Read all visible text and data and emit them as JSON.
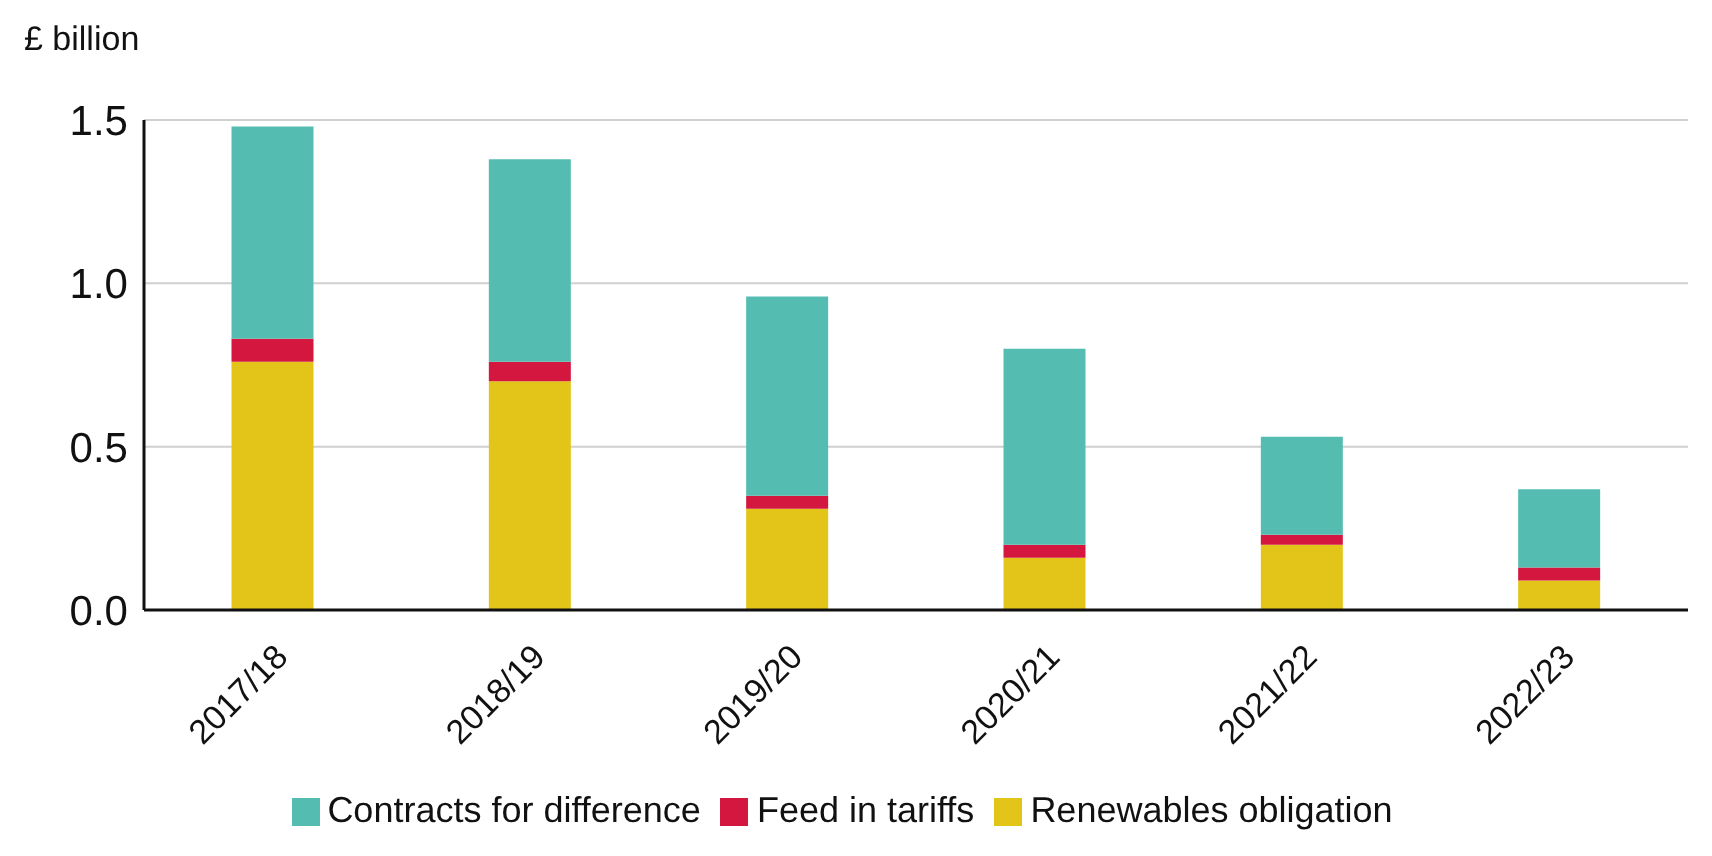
{
  "chart_data": {
    "type": "bar",
    "ylabel": "£ billion",
    "categories": [
      "2017/18",
      "2018/19",
      "2019/20",
      "2020/21",
      "2021/22",
      "2022/23"
    ],
    "stacked": true,
    "ylim": [
      0,
      1.5
    ],
    "yticks": [
      {
        "value": 0,
        "label": "0.0"
      },
      {
        "value": 0.5,
        "label": "0.5"
      },
      {
        "value": 1,
        "label": "1.0"
      },
      {
        "value": 1.5,
        "label": "1.5"
      }
    ],
    "grid": "y",
    "legend": "bottom",
    "series": [
      {
        "name": "Renewables obligation",
        "color": "#e3c51a",
        "values": [
          0.76,
          0.7,
          0.31,
          0.16,
          0.2,
          0.09
        ]
      },
      {
        "name": "Feed in tariffs",
        "color": "#d4173f",
        "values": [
          0.07,
          0.06,
          0.04,
          0.04,
          0.03,
          0.04
        ]
      },
      {
        "name": "Contracts for difference",
        "color": "#55bcb1",
        "values": [
          0.65,
          0.62,
          0.61,
          0.6,
          0.3,
          0.24
        ]
      }
    ]
  }
}
